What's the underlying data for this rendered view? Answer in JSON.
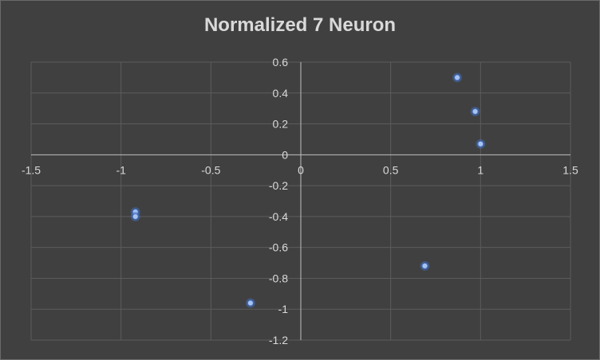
{
  "chart_data": {
    "type": "scatter",
    "title": "Normalized 7 Neuron",
    "xlabel": "",
    "ylabel": "",
    "xlim": [
      -1.5,
      1.5
    ],
    "ylim": [
      -1.2,
      0.6
    ],
    "x_ticks": [
      -1.5,
      -1,
      -0.5,
      0,
      0.5,
      1,
      1.5
    ],
    "x_tick_labels": [
      "-1.5",
      "-1",
      "-0.5",
      "0",
      "0.5",
      "1",
      "1.5"
    ],
    "y_ticks": [
      0.6,
      0.4,
      0.2,
      0,
      -0.2,
      -0.4,
      -0.6,
      -0.8,
      -1,
      -1.2
    ],
    "y_tick_labels": [
      "0.6",
      "0.4",
      "0.2",
      "0",
      "-0.2",
      "-0.4",
      "-0.6",
      "-0.8",
      "-1",
      "-1.2"
    ],
    "grid": true,
    "legend": "none",
    "marker_color": "#4472c4",
    "points": [
      {
        "x": 0.87,
        "y": 0.5
      },
      {
        "x": 0.97,
        "y": 0.28
      },
      {
        "x": 1.0,
        "y": 0.07
      },
      {
        "x": -0.92,
        "y": -0.37
      },
      {
        "x": -0.92,
        "y": -0.4
      },
      {
        "x": -0.28,
        "y": -0.96
      },
      {
        "x": 0.69,
        "y": -0.72
      }
    ]
  }
}
